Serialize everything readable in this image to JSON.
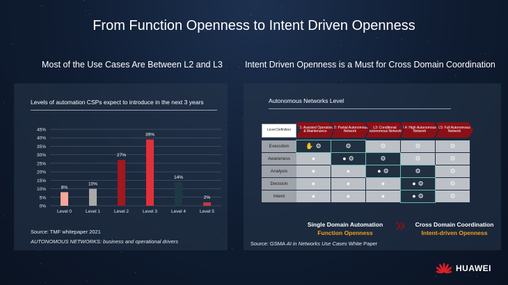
{
  "colors": {
    "accent_red": "#d92027",
    "dark_red": "#8d0f16",
    "orange": "#f0a020"
  },
  "slide": {
    "title": "From Function Openness to Intent Driven Openness",
    "left_subtitle": "Most of the Use Cases Are Between L2 and L3",
    "right_subtitle": "Intent Driven Openness is a Must for Cross Domain Coordination",
    "brand": "HUAWEI"
  },
  "left_panel": {
    "chart_title": "Levels of automation CSPs expect to introduce in the next 3 years",
    "source": "Source:  TMF whitepaper 2021",
    "source_note": "AUTONOMOUS NETWORKS: business and operational drivers"
  },
  "chart_data": {
    "type": "bar",
    "title": "Levels of automation CSPs expect to introduce in the next 3 years",
    "categories": [
      "Level 0",
      "Level 1",
      "Level 2",
      "Level 3",
      "Level 4",
      "Level 5"
    ],
    "values": [
      8,
      10,
      27,
      39,
      14,
      2
    ],
    "value_labels": [
      "8%",
      "10%",
      "27%",
      "39%",
      "14%",
      "2%"
    ],
    "bar_colors": [
      "#f3a89a",
      "#a9a9a9",
      "#a01820",
      "#e0303a",
      "#1c3a44",
      "#c43a40"
    ],
    "yticks": [
      "0%",
      "5%",
      "10%",
      "15%",
      "20%",
      "25%",
      "30%",
      "35%",
      "40%",
      "45%"
    ],
    "ylim": [
      0,
      45
    ],
    "grid": true,
    "xlabel": "",
    "ylabel": ""
  },
  "right_panel": {
    "title": "Autonomous Networks Level",
    "level_definition": "Level Definition",
    "levels": [
      "L1: Assisted Operation & Maintenance",
      "L2: Partial Autonomous Network",
      "L3: Conditional Autonomous Network",
      "L4: High Autonomous Network",
      "L5: Full Autonomous Network"
    ],
    "rows": [
      "Execution",
      "Awareness",
      "Analysis",
      "Decision",
      "Intent"
    ],
    "footer_left_1": "Single Domain Automation",
    "footer_left_2": "Function Openness",
    "footer_right_1": "Cross Domain Coordination",
    "footer_right_2": "Intent-driven Openness",
    "source_prefix": "Source:  GSMA ",
    "source_italic": "AI in Networks Use Cases",
    "source_suffix": " White Paper"
  }
}
